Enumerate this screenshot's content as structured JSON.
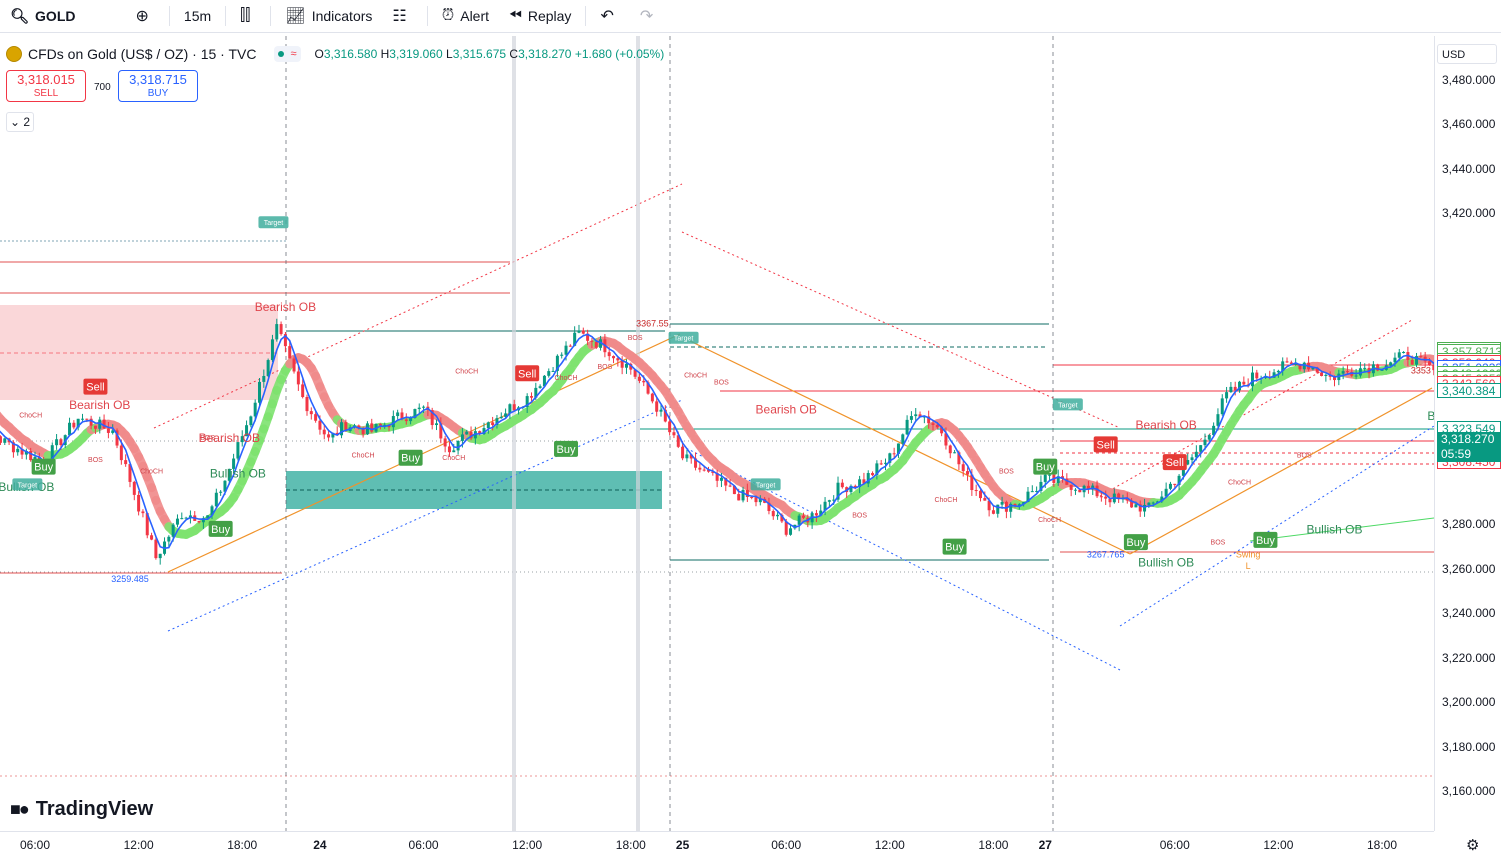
{
  "toolbar": {
    "symbol": "GOLD",
    "interval": "15m",
    "indicators": "Indicators",
    "alert": "Alert",
    "replay": "Replay"
  },
  "legend": {
    "title": "CFDs on Gold (US$ / OZ) · 15 · TVC",
    "o_label": "O",
    "o": "3,316.580",
    "h_label": "H",
    "h": "3,319.060",
    "l_label": "L",
    "l": "3,315.675",
    "c_label": "C",
    "c": "3,318.270",
    "change": "+1.680 (+0.05%)"
  },
  "trade": {
    "sell_price": "3,318.015",
    "sell_label": "SELL",
    "spread": "700",
    "buy_price": "3,318.715",
    "buy_label": "BUY",
    "indicator_count": "2"
  },
  "currency": "USD",
  "current": {
    "price": "3,318.270",
    "countdown": "05:59"
  },
  "brand": "TradingView",
  "colors": {
    "up": "#089981",
    "down": "#f23645",
    "blue": "#2962ff",
    "bull_band": "#7ee36f",
    "bear_band": "#f08a8a"
  },
  "chart_data": {
    "type": "line",
    "y_axis": {
      "ylim": [
        3152,
        3490
      ],
      "ticks": [
        3480,
        3460,
        3440,
        3420,
        3280,
        3260,
        3240,
        3220,
        3200,
        3180,
        3160
      ],
      "tick_labels": [
        "3,480.000",
        "3,460.000",
        "3,440.000",
        "3,420.000",
        "3,280.000",
        "3,260.000",
        "3,240.000",
        "3,220.000",
        "3,200.000",
        "3,180.000",
        "3,160.000"
      ]
    },
    "x_axis": {
      "ticks": [
        "06:00",
        "12:00",
        "18:00",
        "24",
        "06:00",
        "12:00",
        "18:00",
        "25",
        "06:00",
        "12:00",
        "18:00",
        "27",
        "06:00",
        "12:00",
        "18:00"
      ],
      "bold": [
        false,
        false,
        false,
        true,
        false,
        false,
        false,
        true,
        false,
        false,
        false,
        true,
        false,
        false,
        false
      ],
      "day_index": [
        18,
        42,
        66,
        84,
        108,
        132,
        156,
        168,
        192,
        216,
        240,
        252,
        282,
        306,
        330
      ]
    },
    "price_labels": [
      {
        "value": 3359.0202,
        "text": "3,359.0202",
        "color": "#4caf50"
      },
      {
        "value": 3357.8713,
        "text": "3,357.8713",
        "color": "#4caf50"
      },
      {
        "value": 3353.9027,
        "text": "3,353.9027",
        "color": "#4caf50"
      },
      {
        "value": 3353.04,
        "text": "3,353.040",
        "color": "#f23645"
      },
      {
        "value": 3351.0233,
        "text": "3,351.0233",
        "color": "#2962ff"
      },
      {
        "value": 3348.19,
        "text": "3,348.1900",
        "color": "#4caf50"
      },
      {
        "value": 3345.8091,
        "text": "3,345.8091",
        "color": "#f23645"
      },
      {
        "value": 3345.665,
        "text": "3,345.6650",
        "color": "#4caf50"
      },
      {
        "value": 3343.56,
        "text": "3,343.560",
        "color": "#f23645"
      },
      {
        "value": 3340.384,
        "text": "3,340.384",
        "color": "#089981"
      },
      {
        "value": 3323.549,
        "text": "3,323.549",
        "color": "#089981"
      },
      {
        "value": 3315.96,
        "text": "3,315.960",
        "color": "#f23645"
      },
      {
        "value": 3308.45,
        "text": "3,308.450",
        "color": "#f23645"
      }
    ],
    "series": [
      {
        "x": [
          0,
          10,
          20,
          28,
          36,
          40,
          46,
          52,
          58,
          62,
          68,
          74,
          80,
          86,
          90,
          96,
          102,
          108,
          114,
          120,
          126,
          132,
          138,
          144,
          150,
          156,
          162,
          168,
          174,
          180,
          186,
          192,
          198,
          204,
          210,
          216,
          222,
          228,
          234,
          240,
          246,
          252,
          258,
          264,
          270,
          276,
          282,
          288,
          294,
          300,
          306,
          312,
          318,
          324,
          330,
          336,
          342,
          348
        ],
        "values": [
          3340,
          3318,
          3308,
          3328,
          3322,
          3300,
          3265,
          3285,
          3283,
          3300,
          3330,
          3368,
          3337,
          3318,
          3325,
          3322,
          3328,
          3332,
          3315,
          3322,
          3330,
          3337,
          3352,
          3366,
          3360,
          3350,
          3333,
          3310,
          3302,
          3294,
          3290,
          3278,
          3284,
          3296,
          3300,
          3310,
          3332,
          3322,
          3300,
          3287,
          3290,
          3300,
          3298,
          3294,
          3290,
          3287,
          3300,
          3315,
          3338,
          3346,
          3350,
          3353,
          3346,
          3350,
          3352,
          3356,
          3349,
          3318
        ]
      }
    ],
    "annotations": [
      {
        "text": "Bearish OB",
        "x": 76,
        "y": 3376
      },
      {
        "text": "Bearish OB",
        "x": 33,
        "y": 3332
      },
      {
        "text": "Bearish OB",
        "x": 63,
        "y": 3317
      },
      {
        "text": "Bullish OB",
        "x": 16,
        "y": 3295
      },
      {
        "text": "Bullish OB",
        "x": 65,
        "y": 3301
      },
      {
        "text": "Bearish OB",
        "x": 192,
        "y": 3330
      },
      {
        "text": "Bearish OB",
        "x": 280,
        "y": 3323
      },
      {
        "text": "Bullish OB",
        "x": 280,
        "y": 3261
      },
      {
        "text": "Bullish OB",
        "x": 347,
        "y": 3327
      },
      {
        "text": "Bullish OB",
        "x": 319,
        "y": 3276
      },
      {
        "text": "3259.485",
        "x": 40,
        "y": 3254
      },
      {
        "text": "3367.55",
        "x": 161,
        "y": 3369
      },
      {
        "text": "3267.765",
        "x": 266,
        "y": 3265
      },
      {
        "text": "3353",
        "x": 339,
        "y": 3348
      },
      {
        "text": "Swing",
        "x": 299,
        "y": 3265
      },
      {
        "text": "L",
        "x": 299,
        "y": 3260
      }
    ],
    "signals": [
      {
        "text": "Sell",
        "type": "sell",
        "x": 32,
        "y": 3342
      },
      {
        "text": "Sell",
        "type": "sell",
        "x": 132,
        "y": 3348
      },
      {
        "text": "Sell",
        "type": "sell",
        "x": 266,
        "y": 3316
      },
      {
        "text": "Sell",
        "type": "sell",
        "x": 282,
        "y": 3308
      },
      {
        "text": "Sell",
        "type": "sell",
        "x": 346,
        "y": 3360
      },
      {
        "text": "Buy",
        "type": "buy",
        "x": 20,
        "y": 3306
      },
      {
        "text": "Buy",
        "type": "buy",
        "x": 61,
        "y": 3278
      },
      {
        "text": "Buy",
        "type": "buy",
        "x": 105,
        "y": 3310
      },
      {
        "text": "Buy",
        "type": "buy",
        "x": 141,
        "y": 3314
      },
      {
        "text": "Buy",
        "type": "buy",
        "x": 231,
        "y": 3270
      },
      {
        "text": "Buy",
        "type": "buy",
        "x": 252,
        "y": 3306
      },
      {
        "text": "Buy",
        "type": "buy",
        "x": 273,
        "y": 3272
      },
      {
        "text": "Buy",
        "type": "buy",
        "x": 303,
        "y": 3273
      }
    ],
    "tags": [
      {
        "text": "Target",
        "x": 73,
        "y": 3416
      },
      {
        "text": "Target",
        "x": 16,
        "y": 3298
      },
      {
        "text": "Target",
        "x": 168,
        "y": 3364
      },
      {
        "text": "Target",
        "x": 257,
        "y": 3334
      },
      {
        "text": "Target",
        "x": 187,
        "y": 3298
      }
    ],
    "small_labels": [
      {
        "text": "ChoCH",
        "x": 17,
        "y": 3328
      },
      {
        "text": "ChoCH",
        "x": 45,
        "y": 3303
      },
      {
        "text": "ChoCH",
        "x": 118,
        "y": 3348
      },
      {
        "text": "ChoCH",
        "x": 141,
        "y": 3345
      },
      {
        "text": "ChoCH",
        "x": 115,
        "y": 3309
      },
      {
        "text": "ChoCH",
        "x": 171,
        "y": 3346
      },
      {
        "text": "ChoCH",
        "x": 229,
        "y": 3290
      },
      {
        "text": "ChoCH",
        "x": 297,
        "y": 3298
      },
      {
        "text": "BOS",
        "x": 150,
        "y": 3350
      },
      {
        "text": "BOS",
        "x": 157,
        "y": 3363
      },
      {
        "text": "BOS",
        "x": 177,
        "y": 3343
      },
      {
        "text": "BOS",
        "x": 209,
        "y": 3283
      },
      {
        "text": "BOS",
        "x": 243,
        "y": 3303
      },
      {
        "text": "BOS",
        "x": 292,
        "y": 3271
      },
      {
        "text": "BOS",
        "x": 312,
        "y": 3310
      },
      {
        "text": "BOS",
        "x": 58,
        "y": 3318
      },
      {
        "text": "BOS",
        "x": 32,
        "y": 3308
      },
      {
        "text": "ChoCH",
        "x": 253,
        "y": 3281
      },
      {
        "text": "ChoCH",
        "x": 94,
        "y": 3310
      },
      {
        "text": "ChoCH",
        "x": 0,
        "y": 3324
      }
    ]
  }
}
